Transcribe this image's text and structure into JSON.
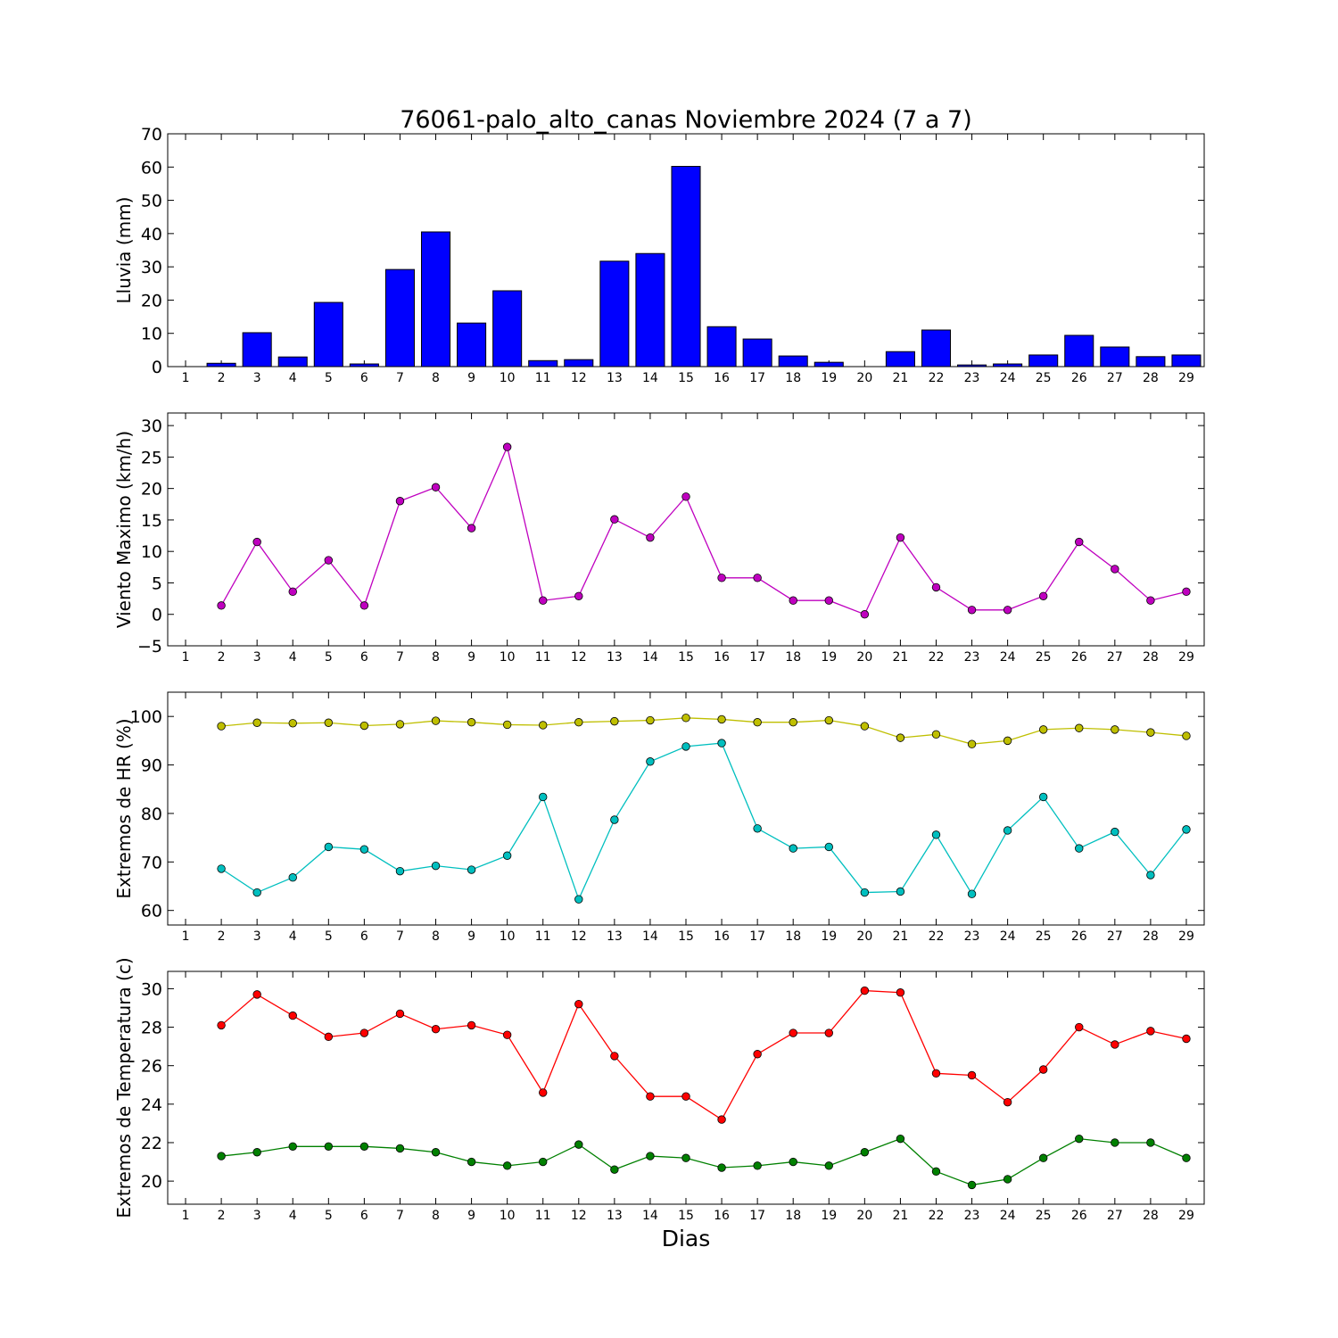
{
  "figure": {
    "title": "76061-palo_alto_canas Noviembre 2024  (7 a 7)",
    "xlabel": "Dias"
  },
  "chart_data": [
    {
      "type": "bar",
      "id": "lluvia",
      "ylabel": "Lluvia (mm)",
      "ylim": [
        0,
        70
      ],
      "yticks": [
        0,
        10,
        20,
        30,
        40,
        50,
        60,
        70
      ],
      "x": [
        1,
        2,
        3,
        4,
        5,
        6,
        7,
        8,
        9,
        10,
        11,
        12,
        13,
        14,
        15,
        16,
        17,
        18,
        19,
        20,
        21,
        22,
        23,
        24,
        25,
        26,
        27,
        28,
        29
      ],
      "xlim": [
        0.5,
        29.5
      ],
      "color": "#0000ff",
      "values": [
        0,
        1.0,
        10.2,
        2.9,
        19.3,
        0.8,
        29.2,
        40.5,
        13.1,
        22.8,
        1.8,
        2.1,
        31.7,
        34.0,
        60.2,
        12.0,
        8.3,
        3.2,
        1.3,
        0,
        4.5,
        11.0,
        0.5,
        0.8,
        3.5,
        9.4,
        5.9,
        3.0,
        3.5
      ]
    },
    {
      "type": "line",
      "id": "viento",
      "ylabel": "Viento Maximo (km/h)",
      "ylim": [
        -5,
        32
      ],
      "yticks": [
        -5,
        0,
        5,
        10,
        15,
        20,
        25,
        30
      ],
      "ytick_labels": [
        "−5",
        "0",
        "5",
        "10",
        "15",
        "20",
        "25",
        "30"
      ],
      "x": [
        2,
        3,
        4,
        5,
        6,
        7,
        8,
        9,
        10,
        11,
        12,
        13,
        14,
        15,
        16,
        17,
        18,
        19,
        20,
        21,
        22,
        23,
        24,
        25,
        26,
        27,
        28,
        29
      ],
      "xticks": [
        1,
        2,
        3,
        4,
        5,
        6,
        7,
        8,
        9,
        10,
        11,
        12,
        13,
        14,
        15,
        16,
        17,
        18,
        19,
        20,
        21,
        22,
        23,
        24,
        25,
        26,
        27,
        28,
        29
      ],
      "xlim": [
        0.5,
        29.5
      ],
      "series": [
        {
          "color": "#bf00bf",
          "values": [
            1.4,
            11.5,
            3.6,
            8.6,
            1.4,
            18.0,
            20.2,
            13.7,
            26.6,
            2.2,
            2.9,
            15.1,
            12.2,
            18.7,
            5.8,
            5.8,
            2.2,
            2.2,
            0.0,
            12.2,
            4.3,
            0.7,
            0.7,
            2.9,
            11.5,
            7.2,
            2.2,
            3.6
          ]
        }
      ]
    },
    {
      "type": "line",
      "id": "humedad",
      "ylabel": "Extremos de HR (%)",
      "ylim": [
        57,
        105
      ],
      "yticks": [
        60,
        70,
        80,
        90,
        100
      ],
      "x": [
        2,
        3,
        4,
        5,
        6,
        7,
        8,
        9,
        10,
        11,
        12,
        13,
        14,
        15,
        16,
        17,
        18,
        19,
        20,
        21,
        22,
        23,
        24,
        25,
        26,
        27,
        28,
        29
      ],
      "xticks": [
        1,
        2,
        3,
        4,
        5,
        6,
        7,
        8,
        9,
        10,
        11,
        12,
        13,
        14,
        15,
        16,
        17,
        18,
        19,
        20,
        21,
        22,
        23,
        24,
        25,
        26,
        27,
        28,
        29
      ],
      "xlim": [
        0.5,
        29.5
      ],
      "series": [
        {
          "color": "#bfbf00",
          "values": [
            98.0,
            98.7,
            98.6,
            98.7,
            98.1,
            98.4,
            99.1,
            98.8,
            98.3,
            98.2,
            98.8,
            99.0,
            99.2,
            99.7,
            99.4,
            98.8,
            98.8,
            99.2,
            98.0,
            95.6,
            96.3,
            94.3,
            95.0,
            97.3,
            97.6,
            97.3,
            96.7,
            96.0
          ]
        },
        {
          "color": "#00bfbf",
          "values": [
            68.6,
            63.7,
            66.8,
            73.1,
            72.6,
            68.1,
            69.2,
            68.4,
            71.3,
            83.4,
            62.3,
            78.7,
            90.7,
            93.8,
            94.5,
            76.9,
            72.8,
            73.1,
            63.7,
            63.9,
            75.6,
            63.4,
            76.5,
            83.4,
            72.8,
            76.2,
            67.3,
            76.7
          ]
        }
      ]
    },
    {
      "type": "line",
      "id": "temperatura",
      "ylabel": "Extremos de Temperatura (c)",
      "ylim": [
        18.8,
        30.9
      ],
      "yticks": [
        20,
        22,
        24,
        26,
        28,
        30
      ],
      "x": [
        2,
        3,
        4,
        5,
        6,
        7,
        8,
        9,
        10,
        11,
        12,
        13,
        14,
        15,
        16,
        17,
        18,
        19,
        20,
        21,
        22,
        23,
        24,
        25,
        26,
        27,
        28,
        29
      ],
      "xticks": [
        1,
        2,
        3,
        4,
        5,
        6,
        7,
        8,
        9,
        10,
        11,
        12,
        13,
        14,
        15,
        16,
        17,
        18,
        19,
        20,
        21,
        22,
        23,
        24,
        25,
        26,
        27,
        28,
        29
      ],
      "xlim": [
        0.5,
        29.5
      ],
      "series": [
        {
          "color": "#ff0000",
          "values": [
            28.1,
            29.7,
            28.6,
            27.5,
            27.7,
            28.7,
            27.9,
            28.1,
            27.6,
            24.6,
            29.2,
            26.5,
            24.4,
            24.4,
            23.2,
            26.6,
            27.7,
            27.7,
            29.9,
            29.8,
            25.6,
            25.5,
            24.1,
            25.8,
            28.0,
            27.1,
            27.8,
            27.4
          ]
        },
        {
          "color": "#008000",
          "values": [
            21.3,
            21.5,
            21.8,
            21.8,
            21.8,
            21.7,
            21.5,
            21.0,
            20.8,
            21.0,
            21.9,
            20.6,
            21.3,
            21.2,
            20.7,
            20.8,
            21.0,
            20.8,
            21.5,
            22.2,
            20.5,
            19.8,
            20.1,
            21.2,
            22.2,
            22.0,
            22.0,
            21.2
          ]
        }
      ]
    }
  ]
}
